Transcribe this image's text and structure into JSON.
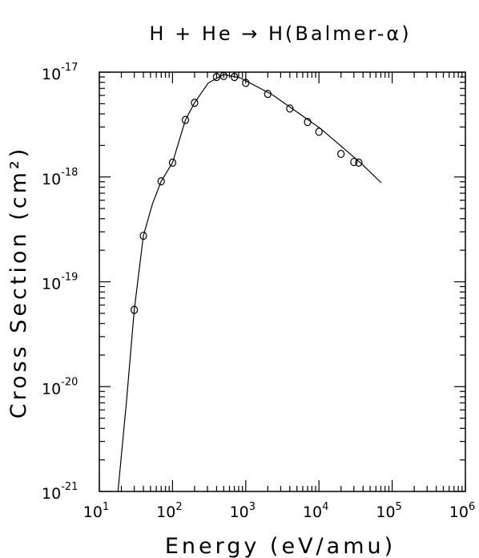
{
  "chart_data": {
    "type": "scatter",
    "title": "H + He → H(Balmer-α)",
    "xlabel": "Energy (eV/amu)",
    "ylabel": "Cross Section (cm²)",
    "log_x": true,
    "log_y": true,
    "xlim": [
      10,
      1000000
    ],
    "ylim": [
      1e-21,
      1e-17
    ],
    "xticks": [
      {
        "value": 10,
        "label": "10",
        "exp": "1"
      },
      {
        "value": 100,
        "label": "10",
        "exp": "2"
      },
      {
        "value": 1000,
        "label": "10",
        "exp": "3"
      },
      {
        "value": 10000,
        "label": "10",
        "exp": "4"
      },
      {
        "value": 100000,
        "label": "10",
        "exp": "5"
      },
      {
        "value": 1000000,
        "label": "10",
        "exp": "6"
      }
    ],
    "yticks": [
      {
        "value": 1e-21,
        "label": "10",
        "exp": "-21"
      },
      {
        "value": 1e-20,
        "label": "10",
        "exp": "-20"
      },
      {
        "value": 1e-19,
        "label": "10",
        "exp": "-19"
      },
      {
        "value": 1e-18,
        "label": "10",
        "exp": "-18"
      },
      {
        "value": 1e-17,
        "label": "10",
        "exp": "-17"
      }
    ],
    "series": [
      {
        "kind": "points",
        "color": "#000000",
        "x": [
          30,
          40,
          70,
          100,
          150,
          200,
          400,
          500,
          700,
          1000,
          2000,
          4000,
          7000,
          10000,
          20000,
          30000,
          35000
        ],
        "values": [
          5.4e-20,
          2.75e-19,
          9.1e-19,
          1.37e-18,
          3.5e-18,
          5.1e-18,
          9e-18,
          9.2e-18,
          9e-18,
          7.9e-18,
          6.2e-18,
          4.5e-18,
          3.35e-18,
          2.7e-18,
          1.66e-18,
          1.39e-18,
          1.37e-18
        ]
      },
      {
        "kind": "curve",
        "color": "#000000",
        "x": [
          18,
          23.5,
          30,
          40,
          53,
          70,
          100,
          150,
          200,
          308,
          500,
          850,
          2300,
          10500,
          36900,
          71000
        ],
        "values": [
          1e-21,
          7.2e-21,
          5.4e-20,
          2.75e-19,
          5.5e-19,
          9.1e-19,
          1.37e-18,
          3.5e-18,
          5.1e-18,
          7.9e-18,
          9.5e-18,
          8.8e-18,
          6.1e-18,
          2.9e-18,
          1.37e-18,
          8.8e-19
        ]
      }
    ]
  }
}
